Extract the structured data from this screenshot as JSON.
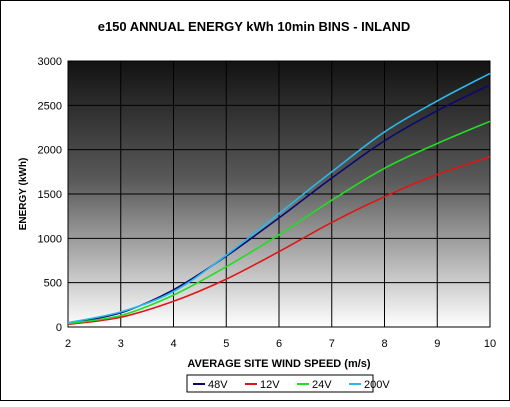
{
  "chart_data": {
    "type": "line",
    "title": "e150 ANNUAL ENERGY kWh 10min BINS - INLAND",
    "xlabel": "AVERAGE SITE WIND SPEED (m/s)",
    "ylabel": "ENERGY (kWh)",
    "xlim": [
      2,
      10
    ],
    "ylim": [
      0,
      3000
    ],
    "xticks": [
      2,
      3,
      4,
      5,
      6,
      7,
      8,
      9,
      10
    ],
    "yticks": [
      0,
      500,
      1000,
      1500,
      2000,
      2500,
      3000
    ],
    "grid": true,
    "legend_position": "bottom",
    "x": [
      2,
      3,
      4,
      5,
      6,
      7,
      8,
      9,
      10
    ],
    "series": [
      {
        "name": "48V",
        "color": "#0a0a6e",
        "values": [
          40,
          160,
          420,
          800,
          1230,
          1680,
          2100,
          2440,
          2730
        ]
      },
      {
        "name": "12V",
        "color": "#e01515",
        "values": [
          30,
          110,
          290,
          540,
          850,
          1180,
          1470,
          1720,
          1920
        ]
      },
      {
        "name": "24V",
        "color": "#22dd22",
        "values": [
          40,
          130,
          360,
          680,
          1040,
          1430,
          1790,
          2070,
          2320
        ]
      },
      {
        "name": "200V",
        "color": "#2ab8ea",
        "values": [
          50,
          170,
          400,
          810,
          1280,
          1750,
          2200,
          2550,
          2860
        ]
      }
    ],
    "plot_gradient": [
      "#121212",
      "#5a5a5a",
      "#ffffff"
    ]
  }
}
